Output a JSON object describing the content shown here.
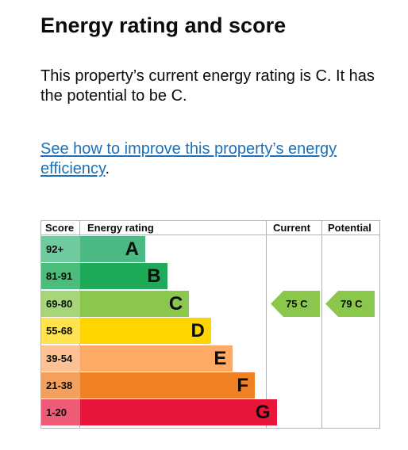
{
  "heading": "Energy rating and score",
  "summary": "This property’s current energy rating is C. It has the potential to be C.",
  "improve": {
    "link_text": "See how to improve this property’s energy efficiency",
    "suffix": "."
  },
  "chart_data": {
    "type": "table",
    "columns": {
      "score": "Score",
      "rating": "Energy rating",
      "current": "Current",
      "potential": "Potential"
    },
    "bands": [
      {
        "score": "92+",
        "letter": "A",
        "color": "#4bb983"
      },
      {
        "score": "81-91",
        "letter": "B",
        "color": "#1eaa59"
      },
      {
        "score": "69-80",
        "letter": "C",
        "color": "#8cc74d"
      },
      {
        "score": "55-68",
        "letter": "D",
        "color": "#ffd500"
      },
      {
        "score": "39-54",
        "letter": "E",
        "color": "#fcaa65"
      },
      {
        "score": "21-38",
        "letter": "F",
        "color": "#ef8023"
      },
      {
        "score": "1-20",
        "letter": "G",
        "color": "#e9153b"
      }
    ],
    "current": {
      "score": 75,
      "letter": "C",
      "label": "75 C",
      "color": "#8cc74d"
    },
    "potential": {
      "score": 79,
      "letter": "C",
      "label": "79 C",
      "color": "#8cc74d"
    }
  }
}
